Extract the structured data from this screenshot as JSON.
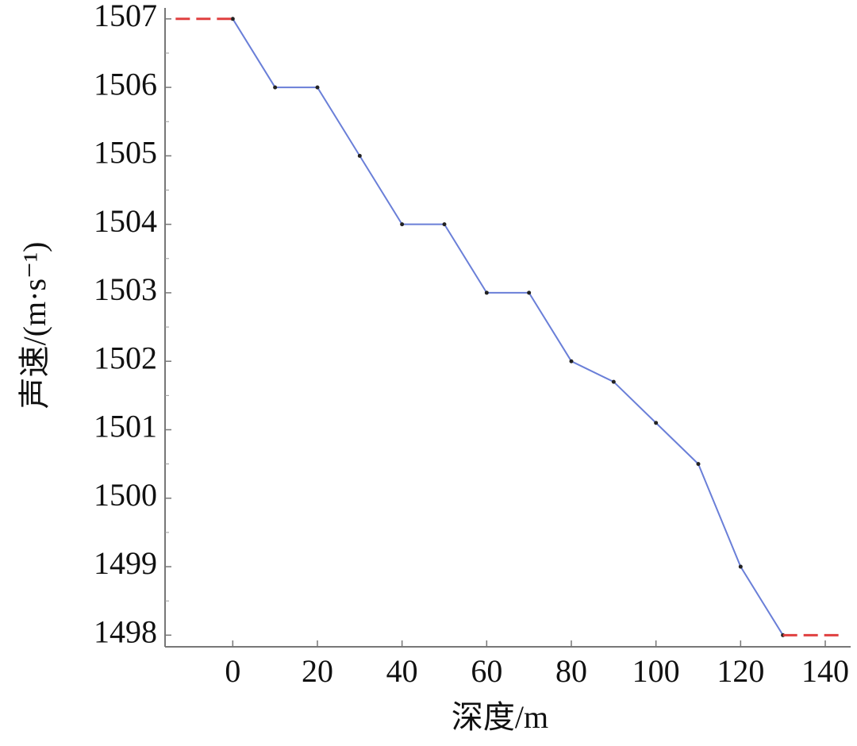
{
  "chart_data": {
    "type": "line",
    "xlabel": "深度/m",
    "ylabel": "声速/(m·s⁻¹)",
    "xlim": [
      -16,
      146
    ],
    "ylim": [
      1497.83,
      1507.16
    ],
    "xticks": [
      0,
      20,
      40,
      60,
      80,
      100,
      120,
      140
    ],
    "yticks": [
      1498,
      1499,
      1500,
      1501,
      1502,
      1503,
      1504,
      1505,
      1506,
      1507
    ],
    "series": [
      {
        "color": "#6a7fd8",
        "marker_color": "#222222",
        "dash": false,
        "x": [
          0,
          10,
          20,
          30,
          40,
          50,
          60,
          70,
          80,
          90,
          100,
          110,
          120,
          130
        ],
        "values": [
          1507,
          1506,
          1506,
          1505,
          1504,
          1504,
          1503,
          1503,
          1502,
          1501.7,
          1501.1,
          1500.5,
          1499,
          1498
        ]
      },
      {
        "color": "#e04040",
        "dash": true,
        "x": [
          -13.5,
          0
        ],
        "values": [
          1507,
          1507
        ]
      },
      {
        "color": "#e04040",
        "dash": true,
        "x": [
          130,
          143.5
        ],
        "values": [
          1498,
          1498
        ]
      }
    ]
  }
}
